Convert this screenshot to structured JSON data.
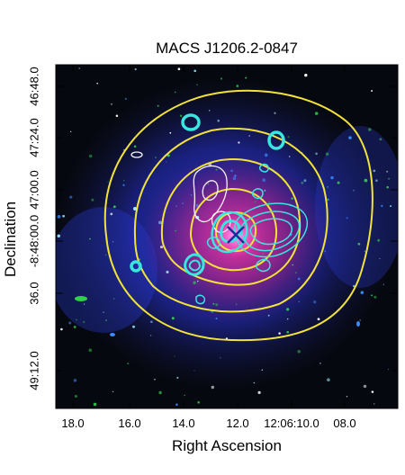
{
  "title": "MACS J1206.2-0847",
  "xlabel": "Right Ascension",
  "ylabel": "Declination",
  "x_ticks": [
    "18.0",
    "16.0",
    "14.0",
    "12.0",
    "12:06:10.0",
    "08.0"
  ],
  "y_ticks": [
    "46:48.0",
    "47:24.0",
    "47:00.0",
    "-8:48:00.0",
    "36.0",
    "49:12.0"
  ],
  "colors": {
    "background": "#06080f",
    "x_ray_glow": "#c81e6e",
    "lensing_glow": "#2a3cff",
    "contour_yellow": "#f2e23a",
    "contour_cyan": "#39e6e0",
    "contour_white": "#f4f4f4",
    "marker": "#1e2a9a"
  }
}
